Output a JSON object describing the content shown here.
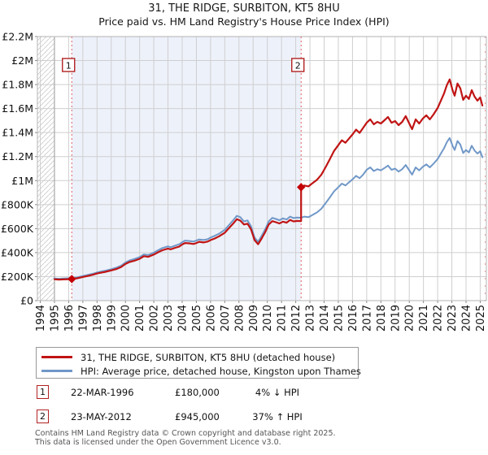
{
  "title": {
    "line1": "31, THE RIDGE, SURBITON, KT5 8HU",
    "line2": "Price paid vs. HM Land Registry's House Price Index (HPI)"
  },
  "chart_data": {
    "type": "line",
    "x_range": [
      1994,
      2025.5
    ],
    "ylim_gbp": [
      0,
      2200000
    ],
    "grid": true,
    "legend_position": "below",
    "units": "points are [decimal_year, price_in_gbp_thousands]",
    "data_start_year": 1995.0,
    "shaded_span": {
      "from": 1996.22,
      "to": 2012.38
    },
    "x_ticks": [
      "1994",
      "1995",
      "1996",
      "1997",
      "1998",
      "1999",
      "2000",
      "2001",
      "2002",
      "2003",
      "2004",
      "2005",
      "2006",
      "2007",
      "2008",
      "2009",
      "2010",
      "2011",
      "2012",
      "2013",
      "2014",
      "2015",
      "2016",
      "2017",
      "2018",
      "2019",
      "2020",
      "2021",
      "2022",
      "2023",
      "2024",
      "2025"
    ],
    "y_ticks": [
      {
        "v": 0,
        "label": "£0"
      },
      {
        "v": 200,
        "label": "£200K"
      },
      {
        "v": 400,
        "label": "£400K"
      },
      {
        "v": 600,
        "label": "£600K"
      },
      {
        "v": 800,
        "label": "£800K"
      },
      {
        "v": 1000,
        "label": "£1M"
      },
      {
        "v": 1200,
        "label": "£1.2M"
      },
      {
        "v": 1400,
        "label": "£1.4M"
      },
      {
        "v": 1600,
        "label": "£1.6M"
      },
      {
        "v": 1800,
        "label": "£1.8M"
      },
      {
        "v": 2000,
        "label": "£2M"
      },
      {
        "v": 2200,
        "label": "£2.2M"
      }
    ],
    "series": [
      {
        "name": "31, THE RIDGE, SURBITON, KT5 8HU (detached house)",
        "color": "#c01414",
        "points": [
          [
            1995.0,
            178
          ],
          [
            1995.3,
            175
          ],
          [
            1995.6,
            177
          ],
          [
            1996.0,
            179
          ],
          [
            1996.22,
            180
          ],
          [
            1996.6,
            186
          ],
          [
            1997.0,
            197
          ],
          [
            1997.4,
            207
          ],
          [
            1997.7,
            215
          ],
          [
            1998.0,
            226
          ],
          [
            1998.3,
            233
          ],
          [
            1998.6,
            240
          ],
          [
            1999.0,
            252
          ],
          [
            1999.4,
            265
          ],
          [
            1999.7,
            280
          ],
          [
            2000.0,
            305
          ],
          [
            2000.3,
            322
          ],
          [
            2000.6,
            331
          ],
          [
            2001.0,
            348
          ],
          [
            2001.3,
            370
          ],
          [
            2001.6,
            365
          ],
          [
            2002.0,
            384
          ],
          [
            2002.3,
            403
          ],
          [
            2002.6,
            420
          ],
          [
            2003.0,
            434
          ],
          [
            2003.2,
            427
          ],
          [
            2003.5,
            440
          ],
          [
            2003.8,
            451
          ],
          [
            2004.0,
            468
          ],
          [
            2004.2,
            480
          ],
          [
            2004.5,
            477
          ],
          [
            2004.8,
            472
          ],
          [
            2005.0,
            480
          ],
          [
            2005.2,
            490
          ],
          [
            2005.5,
            485
          ],
          [
            2005.8,
            492
          ],
          [
            2006.0,
            504
          ],
          [
            2006.3,
            518
          ],
          [
            2006.6,
            536
          ],
          [
            2007.0,
            566
          ],
          [
            2007.3,
            605
          ],
          [
            2007.6,
            643
          ],
          [
            2007.85,
            678
          ],
          [
            2008.1,
            667
          ],
          [
            2008.35,
            634
          ],
          [
            2008.6,
            641
          ],
          [
            2008.85,
            595
          ],
          [
            2009.1,
            504
          ],
          [
            2009.35,
            470
          ],
          [
            2009.6,
            518
          ],
          [
            2009.85,
            571
          ],
          [
            2010.1,
            634
          ],
          [
            2010.35,
            662
          ],
          [
            2010.6,
            653
          ],
          [
            2010.85,
            643
          ],
          [
            2011.1,
            658
          ],
          [
            2011.35,
            649
          ],
          [
            2011.6,
            672
          ],
          [
            2011.85,
            660
          ],
          [
            2012.1,
            664
          ],
          [
            2012.38,
            662
          ],
          [
            2012.38,
            945
          ],
          [
            2012.6,
            959
          ],
          [
            2012.9,
            952
          ],
          [
            2013.2,
            980
          ],
          [
            2013.5,
            1007
          ],
          [
            2013.8,
            1048
          ],
          [
            2014.1,
            1110
          ],
          [
            2014.4,
            1178
          ],
          [
            2014.7,
            1247
          ],
          [
            2015.0,
            1295
          ],
          [
            2015.25,
            1336
          ],
          [
            2015.5,
            1315
          ],
          [
            2015.75,
            1349
          ],
          [
            2016.0,
            1384
          ],
          [
            2016.25,
            1425
          ],
          [
            2016.5,
            1397
          ],
          [
            2016.75,
            1439
          ],
          [
            2017.0,
            1482
          ],
          [
            2017.25,
            1510
          ],
          [
            2017.5,
            1469
          ],
          [
            2017.75,
            1489
          ],
          [
            2018.0,
            1476
          ],
          [
            2018.25,
            1503
          ],
          [
            2018.5,
            1530
          ],
          [
            2018.75,
            1482
          ],
          [
            2019.0,
            1496
          ],
          [
            2019.25,
            1462
          ],
          [
            2019.5,
            1489
          ],
          [
            2019.75,
            1537
          ],
          [
            2020.0,
            1476
          ],
          [
            2020.2,
            1428
          ],
          [
            2020.45,
            1510
          ],
          [
            2020.7,
            1476
          ],
          [
            2020.95,
            1516
          ],
          [
            2021.2,
            1544
          ],
          [
            2021.45,
            1510
          ],
          [
            2021.7,
            1550
          ],
          [
            2022.0,
            1605
          ],
          [
            2022.2,
            1659
          ],
          [
            2022.45,
            1727
          ],
          [
            2022.65,
            1795
          ],
          [
            2022.85,
            1843
          ],
          [
            2023.05,
            1754
          ],
          [
            2023.2,
            1707
          ],
          [
            2023.4,
            1809
          ],
          [
            2023.6,
            1768
          ],
          [
            2023.8,
            1673
          ],
          [
            2024.0,
            1707
          ],
          [
            2024.2,
            1680
          ],
          [
            2024.4,
            1754
          ],
          [
            2024.6,
            1700
          ],
          [
            2024.8,
            1666
          ],
          [
            2025.0,
            1693
          ],
          [
            2025.15,
            1625
          ]
        ]
      },
      {
        "name": "HPI: Average price, detached house, Kingston upon Thames",
        "color": "#7098c8",
        "points": [
          [
            1995.0,
            185
          ],
          [
            1995.3,
            182
          ],
          [
            1995.6,
            184
          ],
          [
            1996.0,
            186
          ],
          [
            1996.22,
            187
          ],
          [
            1996.6,
            194
          ],
          [
            1997.0,
            205
          ],
          [
            1997.4,
            216
          ],
          [
            1997.7,
            224
          ],
          [
            1998.0,
            235
          ],
          [
            1998.3,
            243
          ],
          [
            1998.6,
            250
          ],
          [
            1999.0,
            262
          ],
          [
            1999.4,
            276
          ],
          [
            1999.7,
            292
          ],
          [
            2000.0,
            318
          ],
          [
            2000.3,
            335
          ],
          [
            2000.6,
            345
          ],
          [
            2001.0,
            362
          ],
          [
            2001.3,
            385
          ],
          [
            2001.6,
            380
          ],
          [
            2002.0,
            400
          ],
          [
            2002.3,
            420
          ],
          [
            2002.6,
            438
          ],
          [
            2003.0,
            452
          ],
          [
            2003.2,
            445
          ],
          [
            2003.5,
            458
          ],
          [
            2003.8,
            470
          ],
          [
            2004.0,
            487
          ],
          [
            2004.2,
            500
          ],
          [
            2004.5,
            497
          ],
          [
            2004.8,
            492
          ],
          [
            2005.0,
            500
          ],
          [
            2005.2,
            510
          ],
          [
            2005.5,
            505
          ],
          [
            2005.8,
            512
          ],
          [
            2006.0,
            525
          ],
          [
            2006.3,
            540
          ],
          [
            2006.6,
            558
          ],
          [
            2007.0,
            590
          ],
          [
            2007.3,
            630
          ],
          [
            2007.6,
            670
          ],
          [
            2007.85,
            706
          ],
          [
            2008.1,
            695
          ],
          [
            2008.35,
            660
          ],
          [
            2008.6,
            668
          ],
          [
            2008.85,
            620
          ],
          [
            2009.1,
            525
          ],
          [
            2009.35,
            490
          ],
          [
            2009.6,
            540
          ],
          [
            2009.85,
            595
          ],
          [
            2010.1,
            660
          ],
          [
            2010.35,
            690
          ],
          [
            2010.6,
            680
          ],
          [
            2010.85,
            670
          ],
          [
            2011.1,
            685
          ],
          [
            2011.35,
            676
          ],
          [
            2011.6,
            700
          ],
          [
            2011.85,
            688
          ],
          [
            2012.1,
            692
          ],
          [
            2012.38,
            690
          ],
          [
            2012.6,
            700
          ],
          [
            2012.9,
            695
          ],
          [
            2013.2,
            715
          ],
          [
            2013.5,
            735
          ],
          [
            2013.8,
            765
          ],
          [
            2014.1,
            810
          ],
          [
            2014.4,
            860
          ],
          [
            2014.7,
            910
          ],
          [
            2015.0,
            945
          ],
          [
            2015.25,
            975
          ],
          [
            2015.5,
            960
          ],
          [
            2015.75,
            985
          ],
          [
            2016.0,
            1010
          ],
          [
            2016.25,
            1040
          ],
          [
            2016.5,
            1020
          ],
          [
            2016.75,
            1050
          ],
          [
            2017.0,
            1090
          ],
          [
            2017.25,
            1110
          ],
          [
            2017.5,
            1080
          ],
          [
            2017.75,
            1095
          ],
          [
            2018.0,
            1085
          ],
          [
            2018.25,
            1105
          ],
          [
            2018.5,
            1125
          ],
          [
            2018.75,
            1090
          ],
          [
            2019.0,
            1100
          ],
          [
            2019.25,
            1075
          ],
          [
            2019.5,
            1095
          ],
          [
            2019.75,
            1130
          ],
          [
            2020.0,
            1085
          ],
          [
            2020.2,
            1050
          ],
          [
            2020.45,
            1110
          ],
          [
            2020.7,
            1085
          ],
          [
            2020.95,
            1115
          ],
          [
            2021.2,
            1135
          ],
          [
            2021.45,
            1110
          ],
          [
            2021.7,
            1140
          ],
          [
            2022.0,
            1180
          ],
          [
            2022.2,
            1220
          ],
          [
            2022.45,
            1270
          ],
          [
            2022.65,
            1320
          ],
          [
            2022.85,
            1355
          ],
          [
            2023.05,
            1290
          ],
          [
            2023.2,
            1255
          ],
          [
            2023.4,
            1330
          ],
          [
            2023.6,
            1300
          ],
          [
            2023.8,
            1230
          ],
          [
            2024.0,
            1255
          ],
          [
            2024.2,
            1235
          ],
          [
            2024.4,
            1290
          ],
          [
            2024.6,
            1250
          ],
          [
            2024.8,
            1225
          ],
          [
            2025.0,
            1245
          ],
          [
            2025.15,
            1195
          ]
        ]
      }
    ],
    "sales": [
      {
        "label": "1",
        "year": 1996.22,
        "price_gbp_thousands": 180
      },
      {
        "label": "2",
        "year": 2012.38,
        "price_gbp_thousands": 945
      }
    ]
  },
  "annotations": [
    {
      "n": "1",
      "date": "22-MAR-1996",
      "price": "£180,000",
      "hpi": "4% ↓ HPI"
    },
    {
      "n": "2",
      "date": "23-MAY-2012",
      "price": "£945,000",
      "hpi": "37% ↑ HPI"
    }
  ],
  "footer": {
    "line1": "Contains HM Land Registry data © Crown copyright and database right 2025.",
    "line2": "This data is licensed under the Open Government Licence v3.0."
  }
}
